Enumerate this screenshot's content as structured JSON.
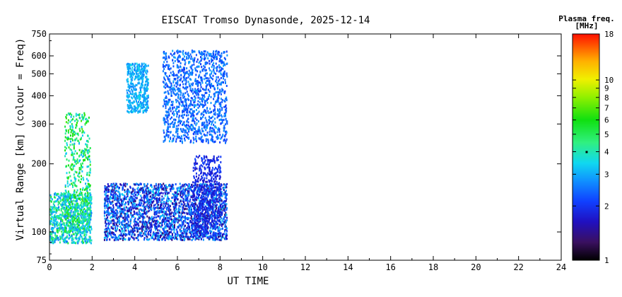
{
  "chart_data": {
    "type": "heatmap",
    "title": "EISCAT Tromso Dynasonde, 2025-12-14",
    "xlabel": "UT TIME",
    "ylabel": "Virtual Range [km] (colour = Freq)",
    "x_ticks": [
      0,
      2,
      4,
      6,
      8,
      10,
      12,
      14,
      16,
      18,
      20,
      22,
      24
    ],
    "xlim": [
      0,
      24
    ],
    "y_scale": "log",
    "ylim": [
      75,
      750
    ],
    "y_ticks": [
      75,
      100,
      200,
      300,
      400,
      500,
      600,
      750
    ],
    "colorbar": {
      "title_line1": "Plasma freq.",
      "title_line2": "[MHz]",
      "scale": "log",
      "range": [
        1,
        18
      ],
      "ticks": [
        1,
        2,
        3,
        4,
        5,
        6,
        7,
        8,
        9,
        10,
        18
      ]
    },
    "regions": [
      {
        "name": "E-layer echoes",
        "t_start": 0.0,
        "t_end": 1.95,
        "h_low": 90,
        "h_high": 150,
        "freq_low": 2.5,
        "freq_high": 5.5
      },
      {
        "name": "early spikes",
        "t_start": 0.7,
        "t_end": 1.9,
        "h_low": 100,
        "h_high": 340,
        "freq_low": 3.0,
        "freq_high": 7.0
      },
      {
        "name": "lower layer",
        "t_start": 2.55,
        "t_end": 8.3,
        "h_low": 93,
        "h_high": 165,
        "freq_low": 1.3,
        "freq_high": 3.5
      },
      {
        "name": "F-region early",
        "t_start": 3.6,
        "t_end": 4.6,
        "h_low": 340,
        "h_high": 560,
        "freq_low": 2.6,
        "freq_high": 3.6
      },
      {
        "name": "F-region main",
        "t_start": 5.3,
        "t_end": 8.3,
        "h_low": 250,
        "h_high": 640,
        "freq_low": 2.0,
        "freq_high": 3.0
      },
      {
        "name": "mid spread",
        "t_start": 6.7,
        "t_end": 8.0,
        "h_low": 95,
        "h_high": 220,
        "freq_low": 1.6,
        "freq_high": 2.2
      }
    ]
  }
}
